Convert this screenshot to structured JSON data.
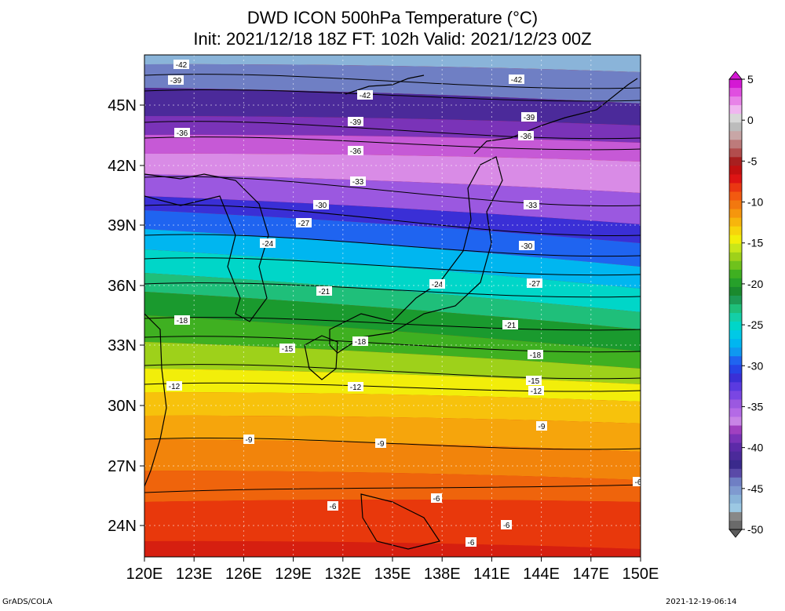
{
  "header": {
    "title_line1": "DWD ICON 500hPa Temperature (°C)",
    "title_line2": "Init: 2021/12/18 18Z  FT: 102h  Valid: 2021/12/23 00Z"
  },
  "map": {
    "lon_labels": [
      "120E",
      "123E",
      "126E",
      "129E",
      "132E",
      "135E",
      "138E",
      "141E",
      "144E",
      "147E",
      "150E"
    ],
    "lat_labels": [
      "45N",
      "42N",
      "39N",
      "36N",
      "33N",
      "30N",
      "27N",
      "24N"
    ],
    "bands": [
      {
        "color": "#8ab4d9"
      },
      {
        "color": "#6f7fc4"
      },
      {
        "color": "#4b2a9a"
      },
      {
        "color": "#7a33b8"
      },
      {
        "color": "#c659d6"
      },
      {
        "color": "#d98be6"
      },
      {
        "color": "#9b58e0"
      },
      {
        "color": "#3a2fd6"
      },
      {
        "color": "#1f64f0"
      },
      {
        "color": "#00b6f0"
      },
      {
        "color": "#00d6c8"
      },
      {
        "color": "#1fbf7a"
      },
      {
        "color": "#1a9a2e"
      },
      {
        "color": "#3fb021"
      },
      {
        "color": "#9ed11a"
      },
      {
        "color": "#f2ee0a"
      },
      {
        "color": "#f7c20c"
      },
      {
        "color": "#f6a50c"
      },
      {
        "color": "#f2840b"
      },
      {
        "color": "#ef640c"
      },
      {
        "color": "#e8380c"
      },
      {
        "color": "#d61f10"
      }
    ],
    "contour_labels": [
      {
        "text": "-42"
      },
      {
        "text": "-39"
      },
      {
        "text": "-42"
      },
      {
        "text": "-42"
      },
      {
        "text": "-39"
      },
      {
        "text": "-39"
      },
      {
        "text": "-36"
      },
      {
        "text": "-36"
      },
      {
        "text": "-36"
      },
      {
        "text": "-33"
      },
      {
        "text": "-33"
      },
      {
        "text": "-30"
      },
      {
        "text": "-27"
      },
      {
        "text": "-30"
      },
      {
        "text": "-24"
      },
      {
        "text": "-27"
      },
      {
        "text": "-21"
      },
      {
        "text": "-24"
      },
      {
        "text": "-21"
      },
      {
        "text": "-18"
      },
      {
        "text": "-18"
      },
      {
        "text": "-18"
      },
      {
        "text": "-15"
      },
      {
        "text": "-15"
      },
      {
        "text": "-12"
      },
      {
        "text": "-12"
      },
      {
        "text": "-12"
      },
      {
        "text": "-9"
      },
      {
        "text": "-9"
      },
      {
        "text": "-9"
      },
      {
        "text": "-6"
      },
      {
        "text": "-6"
      },
      {
        "text": "-6"
      },
      {
        "text": "-6"
      },
      {
        "text": "-6"
      }
    ]
  },
  "colorbar": {
    "labels": [
      "5",
      "0",
      "-5",
      "-10",
      "-15",
      "-20",
      "-25",
      "-30",
      "-35",
      "-40",
      "-45",
      "-50"
    ],
    "colors": [
      "#d418d4",
      "#e04fe0",
      "#e883e8",
      "#f0b6f0",
      "#d8d8d8",
      "#bcbcbc",
      "#c8a6a6",
      "#bd7b7b",
      "#b24d4d",
      "#a81f1f",
      "#c21010",
      "#dd1414",
      "#ea3712",
      "#f25a10",
      "#f2780f",
      "#f6960d",
      "#f7b50c",
      "#f7d40b",
      "#f2ee0a",
      "#c8e61a",
      "#9ed11a",
      "#6fc21c",
      "#3fb021",
      "#26a02a",
      "#1a8a2e",
      "#1d9a55",
      "#1fbf7a",
      "#14cfa7",
      "#00d6c8",
      "#00c9e6",
      "#00b6f0",
      "#0f98f0",
      "#1f64f0",
      "#2644e6",
      "#3a2fd6",
      "#5a3ae0",
      "#7a46e3",
      "#9b58e0",
      "#b46ae6",
      "#c884e6",
      "#a040c0",
      "#7a33b8",
      "#5c2aa8",
      "#4b2a9a",
      "#3a2a8c",
      "#5a4aa8",
      "#6f7fc4",
      "#7f9ad0",
      "#8ab4d9",
      "#9cc8e3",
      "#888888",
      "#6a6a6a"
    ]
  },
  "footer": {
    "left": "GrADS/COLA",
    "right": "2021-12-19-06:14"
  }
}
